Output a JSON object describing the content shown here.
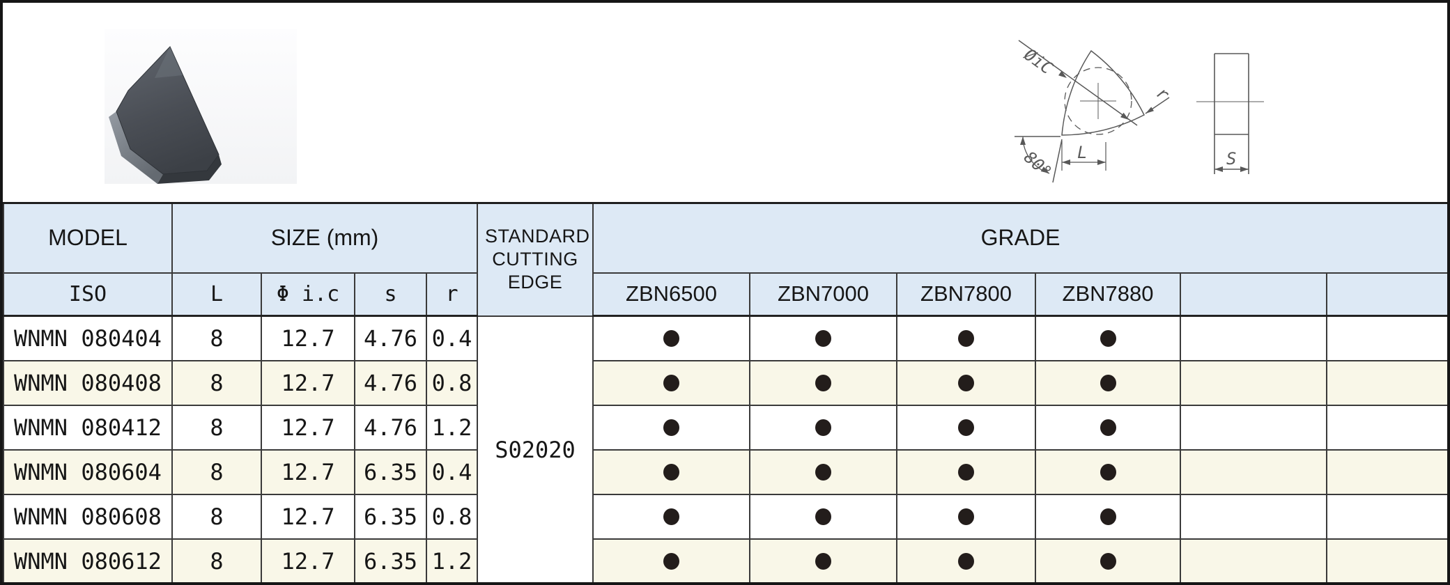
{
  "colors": {
    "header_bg": "#dde9f5",
    "alt_row_bg": "#f9f7e8",
    "cell_border": "#3a3a3a",
    "frame_border": "#1f1f1f",
    "dot": "#231d1b",
    "diagram_line": "#585858",
    "insert_body": "#474b52"
  },
  "diagram": {
    "labels": {
      "diameter": "ØiC",
      "radius": "r",
      "angle": "80°",
      "length": "L",
      "thickness": "S"
    }
  },
  "table": {
    "header": {
      "model": "MODEL",
      "size": "SIZE (mm)",
      "cutting_edge": "STANDARD CUTTING EDGE",
      "grade": "GRADE",
      "iso": "ISO",
      "size_cols": [
        "L",
        "Φ i.c",
        "s",
        "r"
      ],
      "grade_cols": [
        "ZBN6500",
        "ZBN7000",
        "ZBN7800",
        "ZBN7880",
        "",
        ""
      ]
    },
    "cutting_edge_value": "S02020",
    "rows": [
      {
        "model": "WNMN 080404",
        "l": "8",
        "ic": "12.7",
        "s": "4.76",
        "r": "0.4",
        "grades": [
          true,
          true,
          true,
          true,
          false,
          false
        ]
      },
      {
        "model": "WNMN 080408",
        "l": "8",
        "ic": "12.7",
        "s": "4.76",
        "r": "0.8",
        "grades": [
          true,
          true,
          true,
          true,
          false,
          false
        ]
      },
      {
        "model": "WNMN 080412",
        "l": "8",
        "ic": "12.7",
        "s": "4.76",
        "r": "1.2",
        "grades": [
          true,
          true,
          true,
          true,
          false,
          false
        ]
      },
      {
        "model": "WNMN 080604",
        "l": "8",
        "ic": "12.7",
        "s": "6.35",
        "r": "0.4",
        "grades": [
          true,
          true,
          true,
          true,
          false,
          false
        ]
      },
      {
        "model": "WNMN 080608",
        "l": "8",
        "ic": "12.7",
        "s": "6.35",
        "r": "0.8",
        "grades": [
          true,
          true,
          true,
          true,
          false,
          false
        ]
      },
      {
        "model": "WNMN 080612",
        "l": "8",
        "ic": "12.7",
        "s": "6.35",
        "r": "1.2",
        "grades": [
          true,
          true,
          true,
          true,
          false,
          false
        ]
      }
    ]
  }
}
